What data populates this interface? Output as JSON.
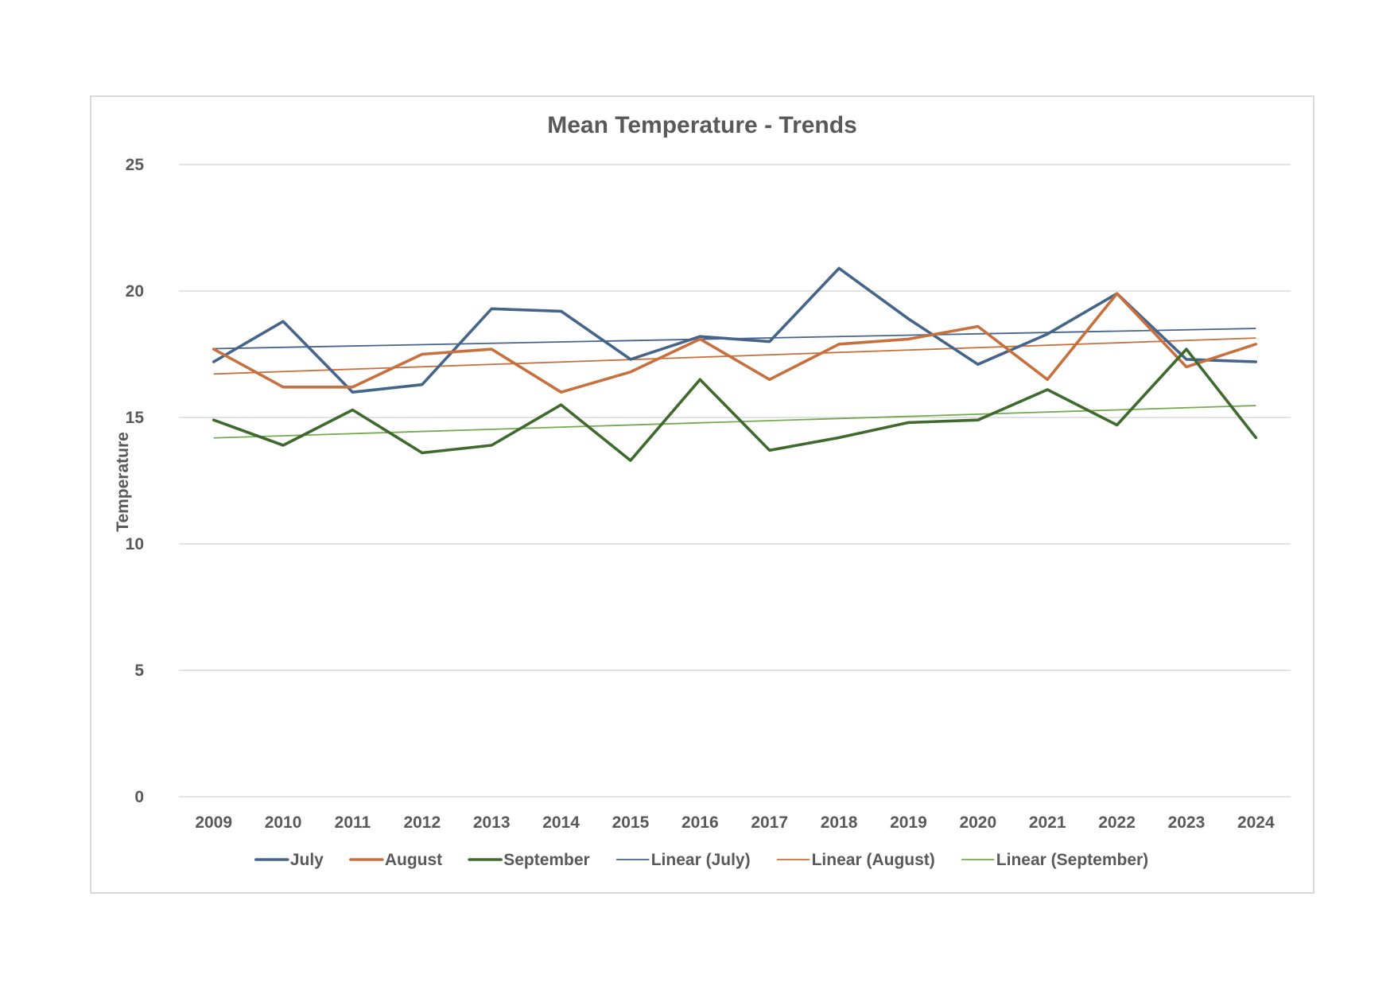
{
  "chart_data": {
    "type": "line",
    "title": "Mean Temperature - Trends",
    "ylabel": "Temperature",
    "xlabel": "",
    "ylim": [
      0,
      25
    ],
    "yticks": [
      "0",
      "5",
      "10",
      "15",
      "20",
      "25"
    ],
    "grid": true,
    "legend_position": "bottom",
    "categories": [
      "2009",
      "2010",
      "2011",
      "2012",
      "2013",
      "2014",
      "2015",
      "2016",
      "2017",
      "2018",
      "2019",
      "2020",
      "2021",
      "2022",
      "2023",
      "2024"
    ],
    "series": [
      {
        "name": "July",
        "color": "#44648a",
        "style": "thick",
        "values": [
          17.2,
          18.8,
          16.0,
          16.3,
          19.3,
          19.2,
          17.3,
          18.2,
          18.0,
          20.9,
          18.9,
          17.1,
          18.3,
          19.9,
          17.3,
          17.2
        ]
      },
      {
        "name": "August",
        "color": "#c8703d",
        "style": "thick",
        "values": [
          17.7,
          16.2,
          16.2,
          17.5,
          17.7,
          16.0,
          16.8,
          18.1,
          16.5,
          17.9,
          18.1,
          18.6,
          16.5,
          19.9,
          17.0,
          17.9
        ]
      },
      {
        "name": "September",
        "color": "#3e6a2d",
        "style": "thick",
        "values": [
          14.9,
          13.9,
          15.3,
          13.6,
          13.9,
          15.5,
          13.3,
          16.5,
          13.7,
          14.2,
          14.8,
          14.9,
          16.1,
          14.7,
          17.7,
          14.2
        ]
      }
    ],
    "trendlines": [
      {
        "name": "Linear (July)",
        "color": "#44648a",
        "start": 17.72,
        "end": 18.52
      },
      {
        "name": "Linear (August)",
        "color": "#c8703d",
        "start": 16.72,
        "end": 18.14
      },
      {
        "name": "Linear (September)",
        "color": "#74aa4f",
        "start": 14.19,
        "end": 15.47
      }
    ]
  }
}
